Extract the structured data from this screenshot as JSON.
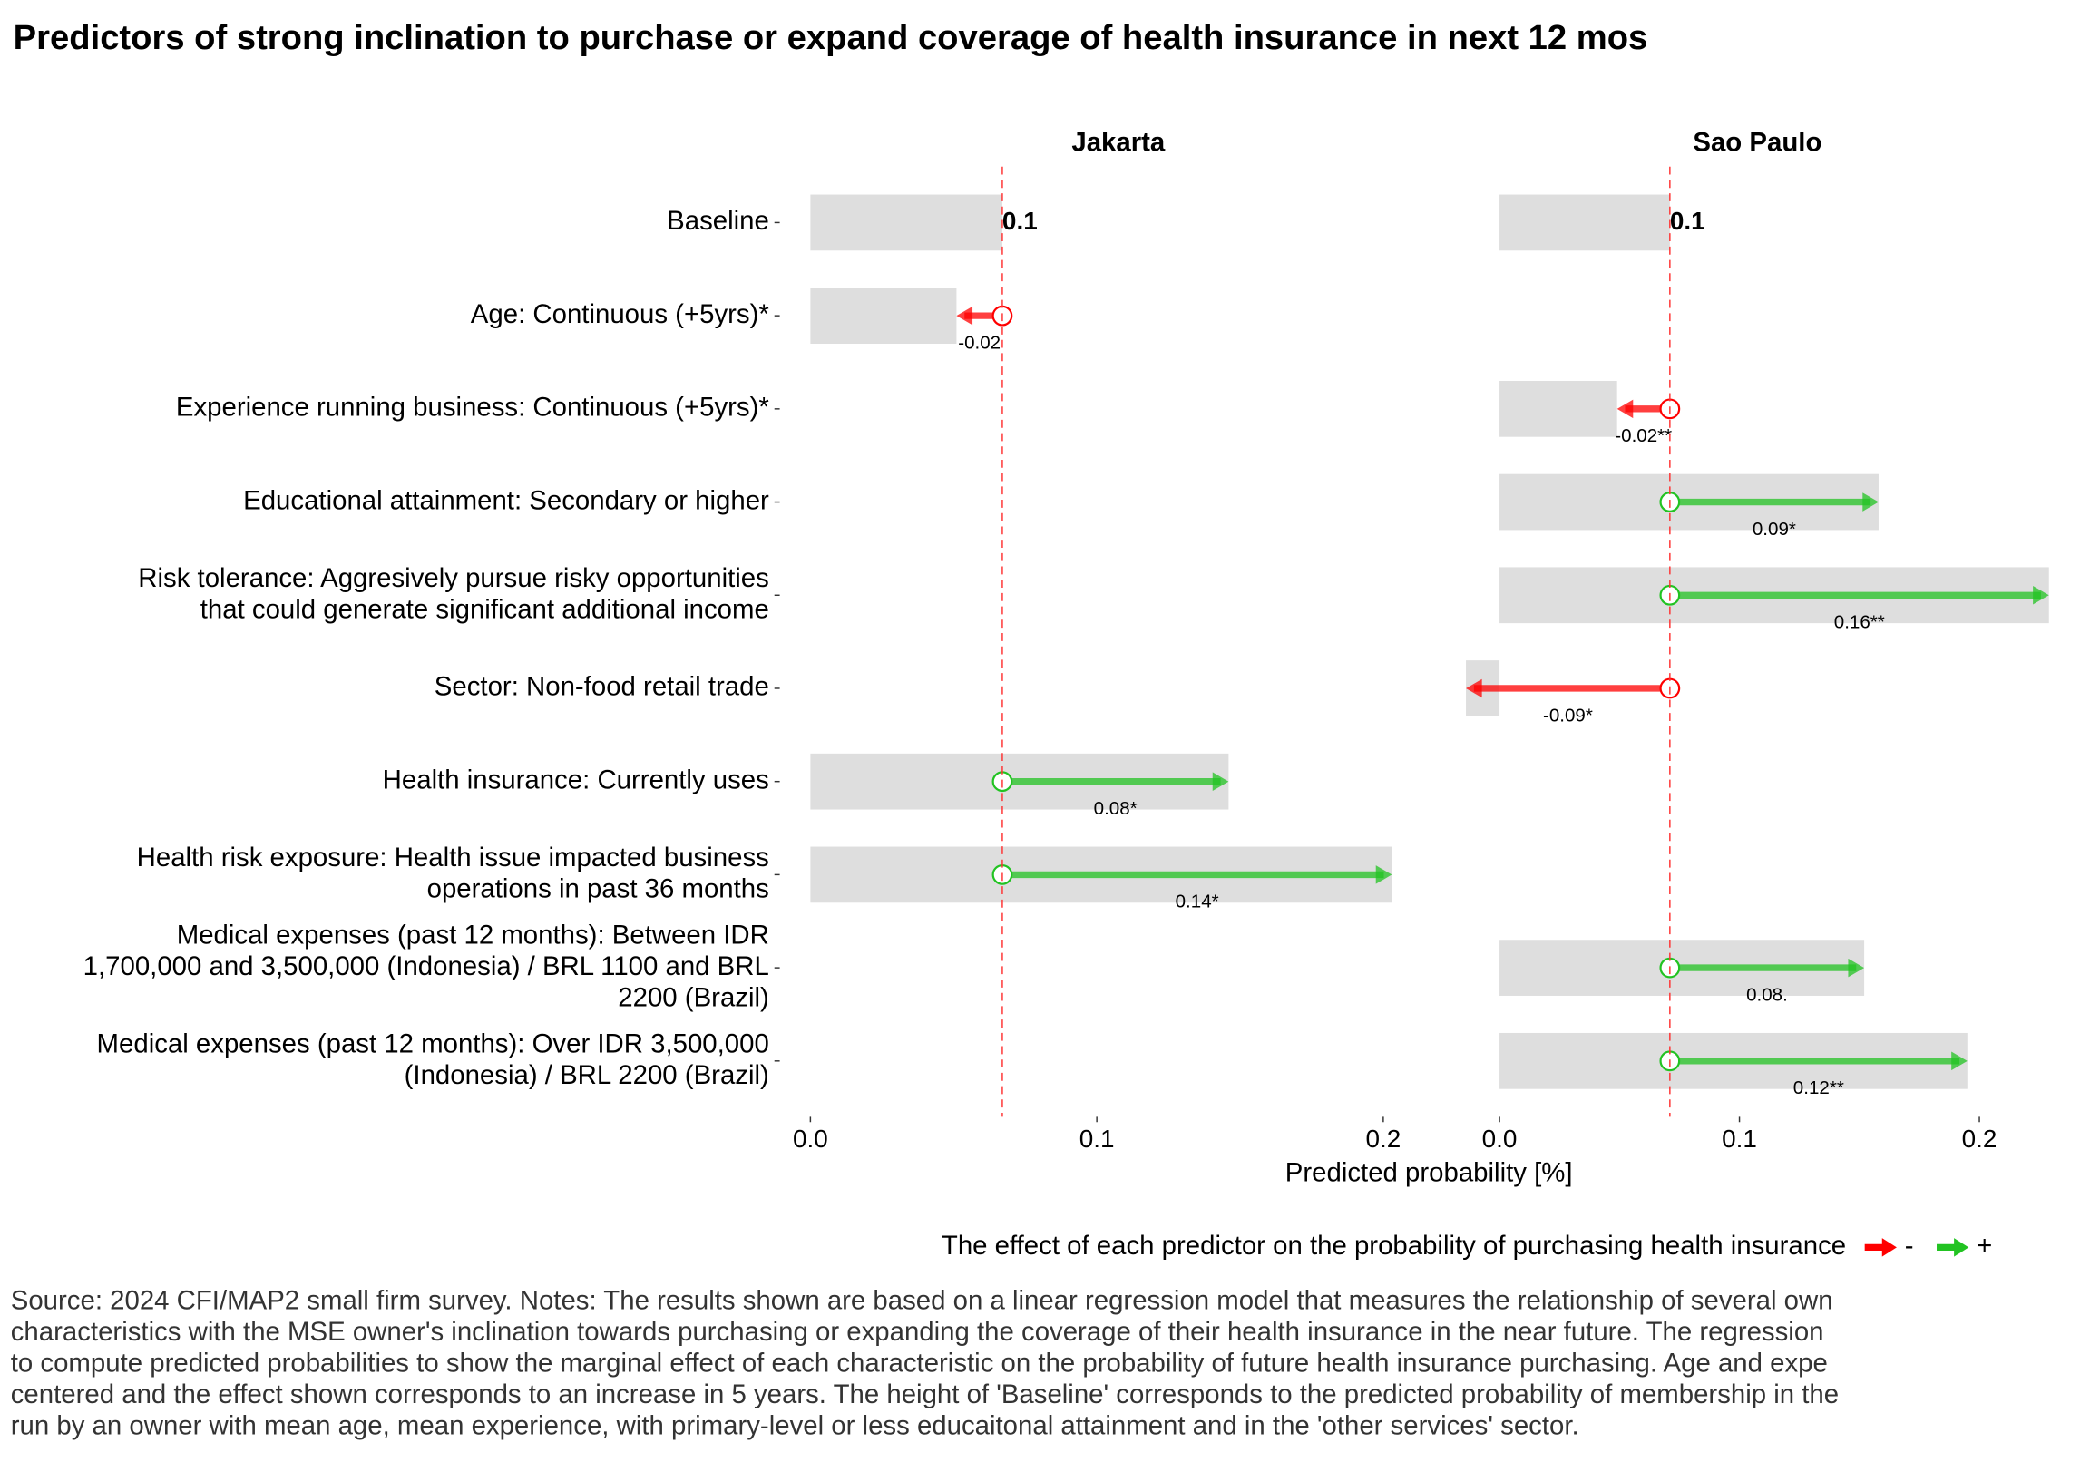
{
  "chart_data": {
    "type": "arrow",
    "title": "Predictors of strong inclination to purchase or expand coverage of health insurance in next 12 mos",
    "x_label": "Predicted probability [%]",
    "categories": [
      "Baseline",
      "Age: Continuous (+5yrs)*",
      "Experience running business: Continuous (+5yrs)*",
      "Educational attainment: Secondary or higher",
      "Risk tolerance: Aggresively pursue risky opportunities\nthat could generate significant additional income",
      "Sector: Non-food retail trade",
      "Health insurance: Currently uses",
      "Health risk exposure: Health issue impacted business\noperations in past 36 months",
      "Medical expenses (past 12 months): Between IDR\n1,700,000 and 3,500,000 (Indonesia) / BRL 1100 and BRL\n2200 (Brazil)",
      "Medical expenses (past 12 months): Over IDR 3,500,000\n(Indonesia) / BRL 2200 (Brazil)"
    ],
    "panels": [
      {
        "name": "Jakarta",
        "values": [
          0.067,
          -0.016,
          null,
          null,
          null,
          null,
          0.079,
          0.136,
          null,
          null
        ],
        "value_labels": [
          "0.1",
          "-0.02",
          null,
          null,
          null,
          null,
          "0.08*",
          "0.14*",
          null,
          null
        ],
        "xlim": [
          0,
          0.215
        ],
        "xticks": [
          {
            "value": 0,
            "label": "0.0"
          },
          0.1,
          0.2
        ]
      },
      {
        "name": "Sao Paulo",
        "values": [
          0.071,
          null,
          -0.022,
          0.087,
          0.158,
          -0.085,
          null,
          null,
          0.081,
          0.124
        ],
        "value_labels": [
          "0.1",
          null,
          "-0.02**",
          "0.09*",
          "0.16**",
          "-0.09*",
          null,
          null,
          "0.08.",
          "0.12**"
        ],
        "xlim": [
          -0.02,
          0.245
        ],
        "xticks": [
          {
            "value": 0,
            "label": "0.0"
          },
          0.1,
          0.2
        ]
      }
    ],
    "legend": {
      "title": "The effect of each predictor on the probability of purchasing health insurance",
      "entries": [
        {
          "name": "-",
          "color": "#ff0000"
        },
        {
          "name": "+",
          "color": "#22c322"
        }
      ]
    },
    "bar_color": "#dedede",
    "baseline_color": "#ff3333",
    "caption_lines": [
      "Source: 2024 CFI/MAP2 small firm survey. Notes: The results shown are based on a linear regression model that measures the relationship of several own",
      "characteristics with the MSE owner's inclination towards purchasing or expanding the coverage of their health insurance in the near future. The regression",
      "to compute predicted probabilities to show the marginal effect of each characteristic on the probability of future health insurance purchasing. Age and expe",
      "centered and the effect shown corresponds to an increase in 5 years. The height of 'Baseline' corresponds to the predicted probability of membership in the",
      "run by an owner with mean age, mean experience, with primary-level or less educaitonal attainment and in the 'other services' sector."
    ]
  }
}
